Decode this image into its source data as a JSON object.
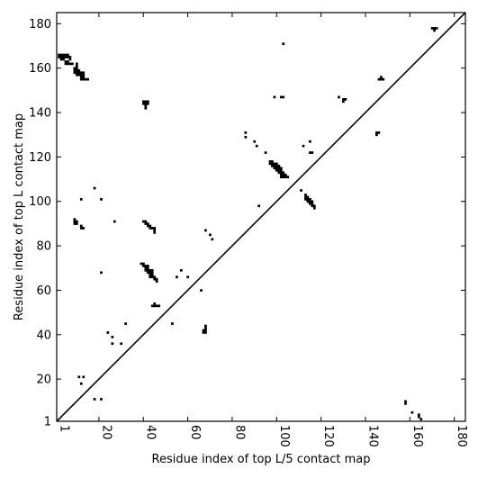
{
  "chart_data": {
    "type": "heatmap",
    "xlabel": "Residue index of top L/5 contact map",
    "ylabel": "Residue index of top L contact map",
    "xlim": [
      1,
      185
    ],
    "ylim": [
      1,
      185
    ],
    "xticks": [
      1,
      20,
      40,
      60,
      80,
      100,
      120,
      140,
      160,
      180
    ],
    "yticks": [
      1,
      20,
      40,
      60,
      80,
      100,
      120,
      140,
      160,
      180
    ],
    "diagonal_line": true,
    "cell_color": "#000000",
    "frame_color": "#000000",
    "upper_contacts": [
      [
        2,
        166
      ],
      [
        3,
        166
      ],
      [
        4,
        166
      ],
      [
        5,
        166
      ],
      [
        6,
        166
      ],
      [
        2,
        165
      ],
      [
        3,
        165
      ],
      [
        4,
        165
      ],
      [
        5,
        165
      ],
      [
        6,
        165
      ],
      [
        7,
        165
      ],
      [
        3,
        164
      ],
      [
        4,
        164
      ],
      [
        7,
        164
      ],
      [
        5,
        163
      ],
      [
        6,
        163
      ],
      [
        5,
        162
      ],
      [
        6,
        162
      ],
      [
        7,
        162
      ],
      [
        8,
        162
      ],
      [
        10,
        162
      ],
      [
        10,
        161
      ],
      [
        9,
        160
      ],
      [
        10,
        160
      ],
      [
        9,
        159
      ],
      [
        10,
        159
      ],
      [
        11,
        159
      ],
      [
        9,
        158
      ],
      [
        10,
        158
      ],
      [
        11,
        158
      ],
      [
        12,
        158
      ],
      [
        13,
        158
      ],
      [
        10,
        157
      ],
      [
        11,
        157
      ],
      [
        12,
        157
      ],
      [
        13,
        157
      ],
      [
        12,
        156
      ],
      [
        13,
        156
      ],
      [
        12,
        155
      ],
      [
        13,
        155
      ],
      [
        14,
        155
      ],
      [
        15,
        155
      ],
      [
        40,
        145
      ],
      [
        41,
        145
      ],
      [
        42,
        145
      ],
      [
        40,
        144
      ],
      [
        41,
        144
      ],
      [
        42,
        144
      ],
      [
        41,
        143
      ],
      [
        41,
        142
      ],
      [
        103,
        171
      ],
      [
        99,
        147
      ],
      [
        102,
        147
      ],
      [
        103,
        147
      ],
      [
        128,
        147
      ],
      [
        130,
        146
      ],
      [
        131,
        146
      ],
      [
        130,
        145
      ],
      [
        86,
        131
      ],
      [
        86,
        129
      ],
      [
        90,
        127
      ],
      [
        91,
        125
      ],
      [
        95,
        122
      ],
      [
        115,
        127
      ],
      [
        112,
        125
      ],
      [
        115,
        122
      ],
      [
        116,
        122
      ],
      [
        97,
        118
      ],
      [
        98,
        118
      ],
      [
        97,
        117
      ],
      [
        98,
        117
      ],
      [
        99,
        117
      ],
      [
        100,
        117
      ],
      [
        98,
        116
      ],
      [
        99,
        116
      ],
      [
        100,
        116
      ],
      [
        101,
        116
      ],
      [
        99,
        115
      ],
      [
        100,
        115
      ],
      [
        101,
        115
      ],
      [
        102,
        115
      ],
      [
        100,
        114
      ],
      [
        101,
        114
      ],
      [
        102,
        114
      ],
      [
        101,
        113
      ],
      [
        102,
        113
      ],
      [
        103,
        113
      ],
      [
        102,
        112
      ],
      [
        103,
        112
      ],
      [
        104,
        112
      ],
      [
        102,
        111
      ],
      [
        103,
        111
      ],
      [
        104,
        111
      ],
      [
        105,
        111
      ],
      [
        111,
        105
      ],
      [
        113,
        103
      ],
      [
        113,
        102
      ],
      [
        114,
        102
      ],
      [
        113,
        101
      ],
      [
        114,
        101
      ],
      [
        115,
        101
      ],
      [
        114,
        100
      ],
      [
        115,
        100
      ],
      [
        116,
        100
      ],
      [
        115,
        99
      ],
      [
        116,
        99
      ],
      [
        116,
        98
      ],
      [
        117,
        98
      ],
      [
        117,
        97
      ],
      [
        18,
        106
      ],
      [
        12,
        101
      ],
      [
        21,
        101
      ],
      [
        92,
        98
      ],
      [
        27,
        91
      ],
      [
        9,
        92
      ],
      [
        9,
        91
      ],
      [
        10,
        91
      ],
      [
        9,
        90
      ],
      [
        10,
        90
      ],
      [
        12,
        89
      ],
      [
        12,
        88
      ],
      [
        13,
        88
      ],
      [
        40,
        91
      ],
      [
        41,
        91
      ],
      [
        41,
        90
      ],
      [
        42,
        90
      ],
      [
        42,
        89
      ],
      [
        43,
        89
      ],
      [
        43,
        88
      ],
      [
        44,
        88
      ],
      [
        45,
        88
      ],
      [
        45,
        87
      ],
      [
        45,
        86
      ],
      [
        68,
        87
      ],
      [
        70,
        85
      ],
      [
        71,
        83
      ],
      [
        39,
        72
      ],
      [
        40,
        72
      ],
      [
        40,
        71
      ],
      [
        41,
        71
      ],
      [
        42,
        71
      ],
      [
        41,
        70
      ],
      [
        42,
        70
      ],
      [
        41,
        69
      ],
      [
        42,
        69
      ],
      [
        43,
        69
      ],
      [
        44,
        69
      ],
      [
        42,
        68
      ],
      [
        43,
        68
      ],
      [
        44,
        68
      ],
      [
        43,
        67
      ],
      [
        44,
        67
      ],
      [
        43,
        66
      ],
      [
        44,
        66
      ],
      [
        45,
        66
      ],
      [
        45,
        65
      ],
      [
        46,
        65
      ],
      [
        46,
        64
      ],
      [
        57,
        69
      ],
      [
        55,
        66
      ],
      [
        60,
        66
      ],
      [
        21,
        68
      ],
      [
        66,
        60
      ],
      [
        45,
        54
      ],
      [
        44,
        53
      ],
      [
        45,
        53
      ],
      [
        46,
        53
      ],
      [
        47,
        53
      ],
      [
        53,
        45
      ],
      [
        32,
        45
      ],
      [
        68,
        44
      ],
      [
        68,
        43
      ],
      [
        67,
        42
      ],
      [
        68,
        42
      ],
      [
        67,
        41
      ],
      [
        68,
        41
      ],
      [
        24,
        41
      ],
      [
        26,
        39
      ],
      [
        26,
        36
      ],
      [
        30,
        36
      ],
      [
        11,
        21
      ],
      [
        13,
        21
      ],
      [
        12,
        18
      ],
      [
        18,
        11
      ],
      [
        21,
        11
      ]
    ],
    "lower_contacts": [
      [
        170,
        178
      ],
      [
        171,
        178
      ],
      [
        172,
        178
      ],
      [
        171,
        177
      ],
      [
        147,
        156
      ],
      [
        146,
        155
      ],
      [
        147,
        155
      ],
      [
        148,
        155
      ],
      [
        145,
        131
      ],
      [
        146,
        131
      ],
      [
        145,
        130
      ],
      [
        158,
        10
      ],
      [
        158,
        9
      ],
      [
        161,
        5
      ],
      [
        164,
        4
      ],
      [
        164,
        3
      ],
      [
        165,
        2
      ]
    ]
  }
}
